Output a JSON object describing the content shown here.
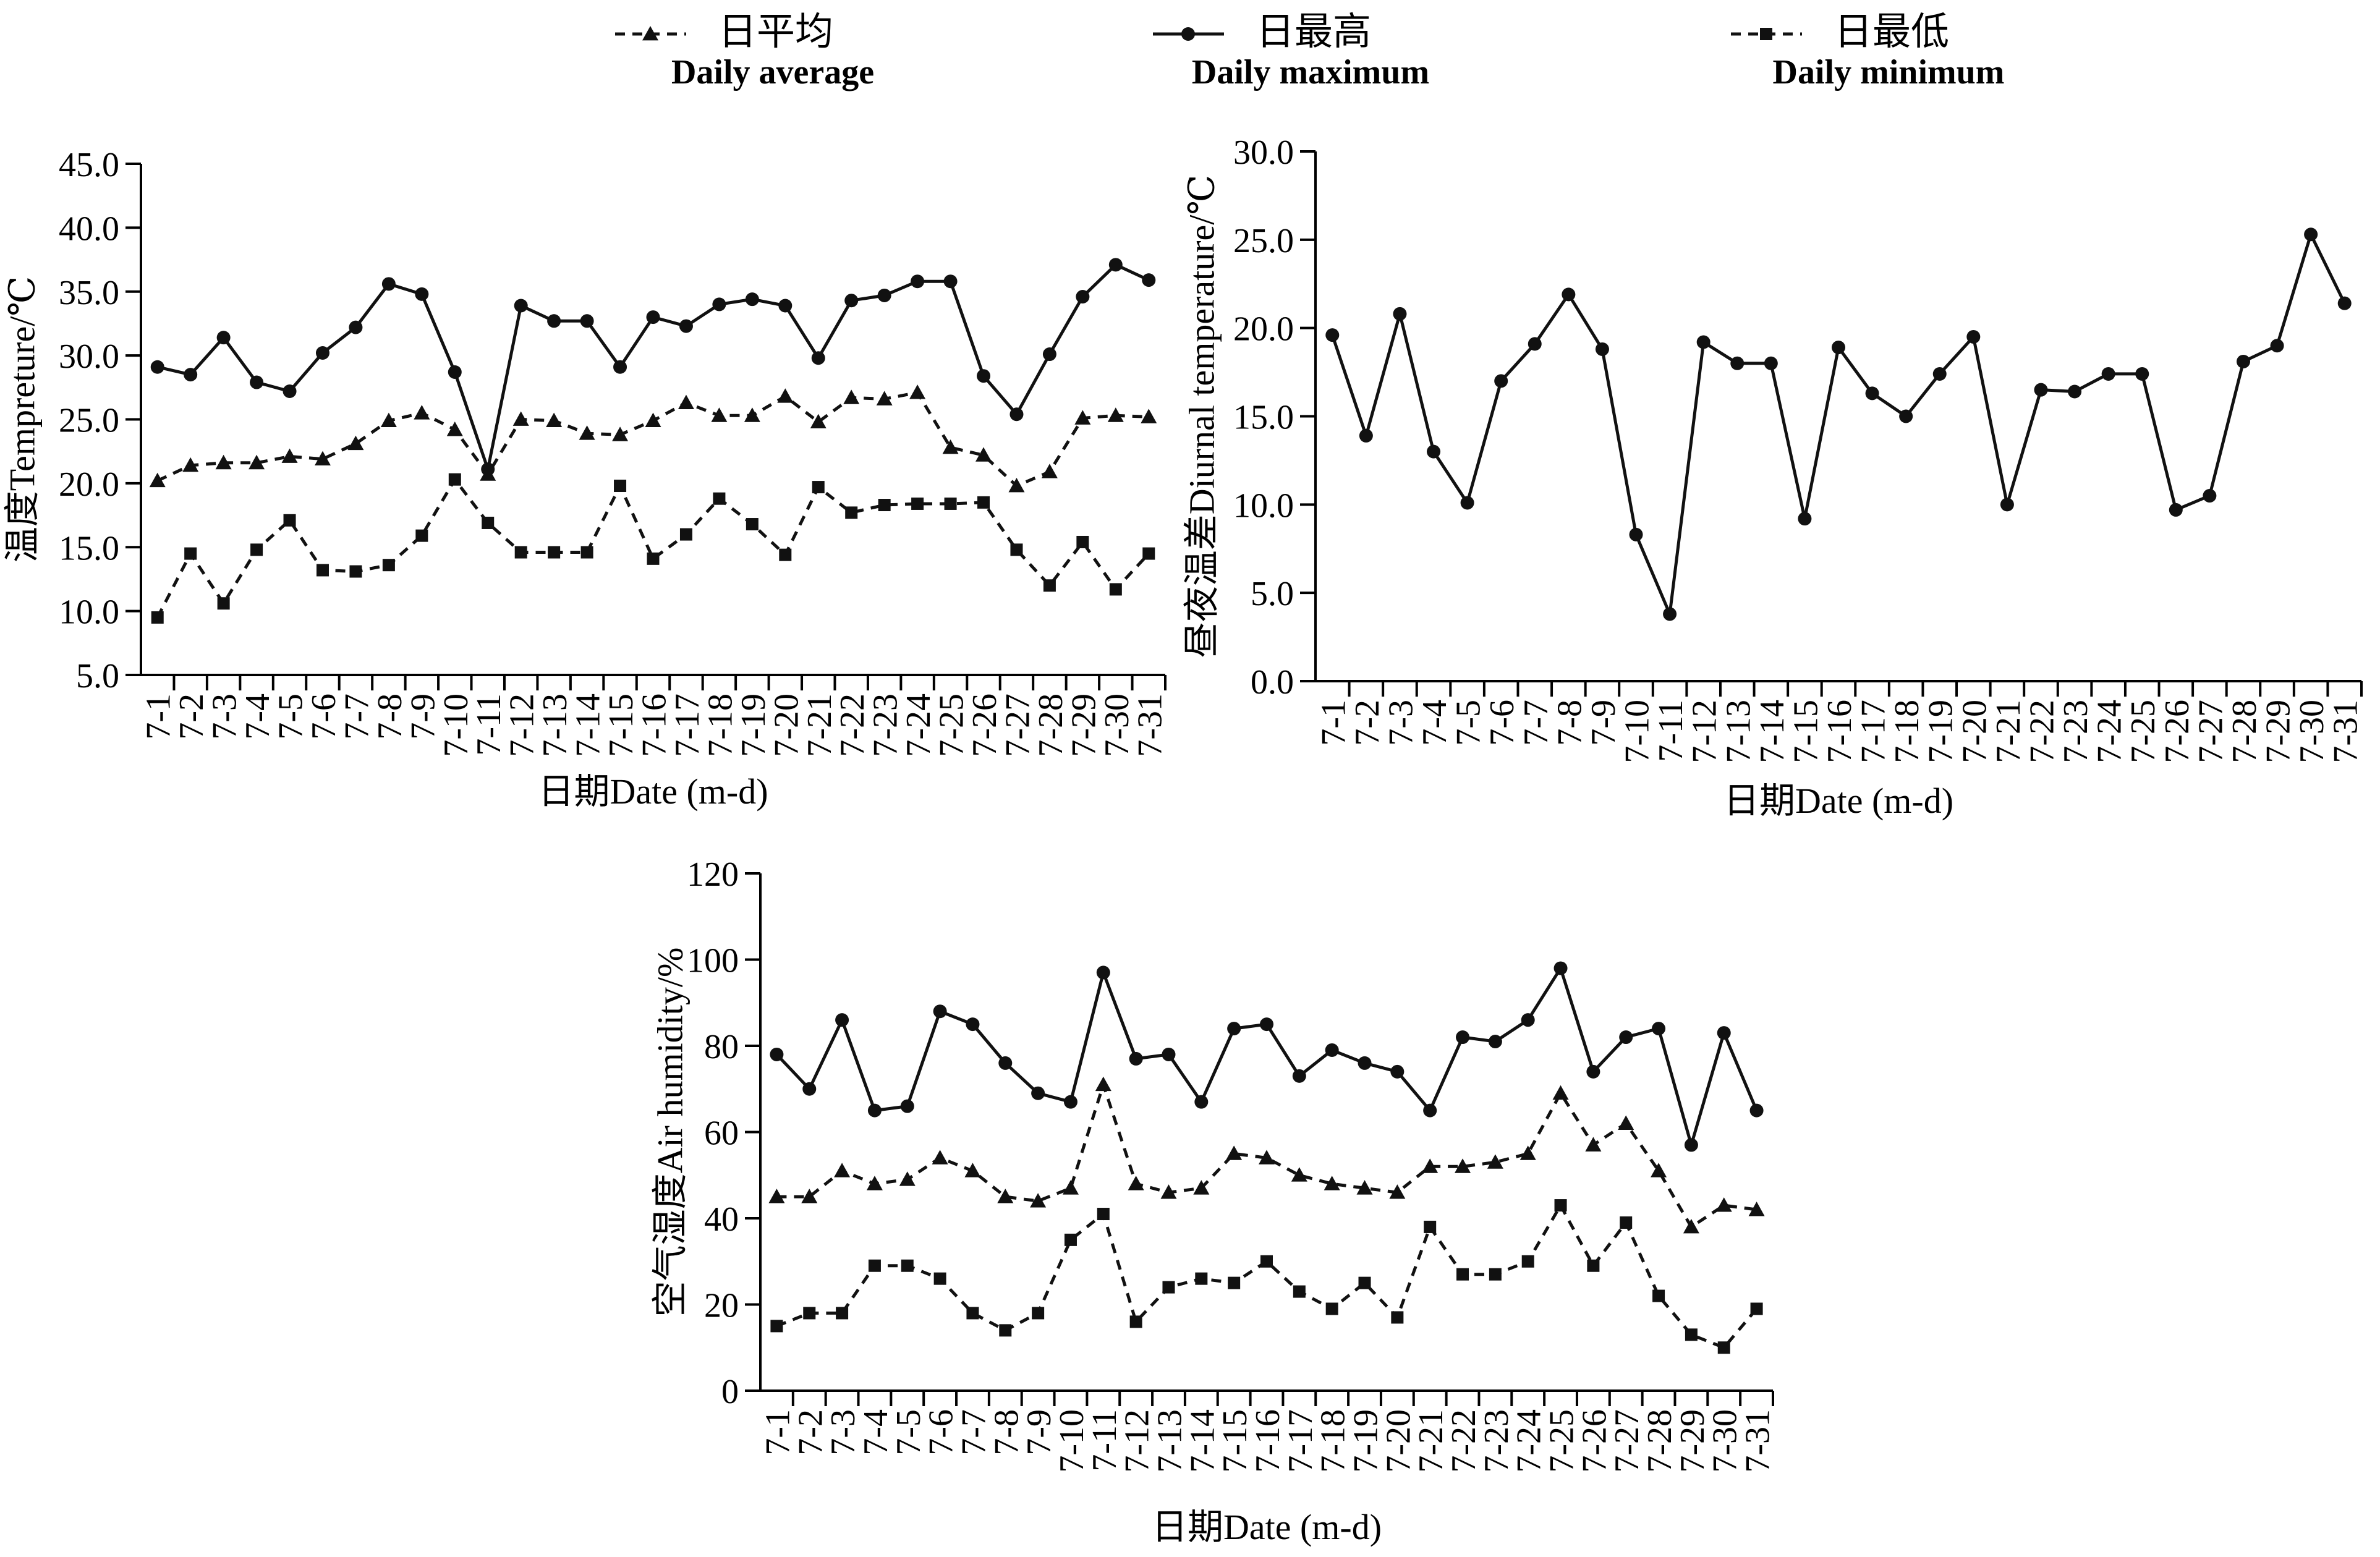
{
  "legend": [
    {
      "key": "avg",
      "label_cn": "日平均",
      "label_en": "Daily average",
      "marker": "triangle-icon",
      "dash": "dashed"
    },
    {
      "key": "max",
      "label_cn": "日最高",
      "label_en": "Daily maximum",
      "marker": "circle-icon",
      "dash": "solid"
    },
    {
      "key": "min",
      "label_cn": "日最低",
      "label_en": "Daily minimum",
      "marker": "square-icon",
      "dash": "dashed"
    }
  ],
  "chart_data": [
    {
      "type": "line",
      "id": "temperature",
      "title": "",
      "xlabel": "日期Date (m-d)",
      "ylabel": "温度Tempreture/℃",
      "ylim": [
        5.0,
        45.0
      ],
      "yticks": [
        "45.0",
        "40.0",
        "35.0",
        "30.0",
        "25.0",
        "20.0",
        "15.0",
        "10.0",
        "5.0"
      ],
      "categories": [
        "7-1",
        "7-2",
        "7-3",
        "7-4",
        "7-5",
        "7-6",
        "7-7",
        "7-8",
        "7-9",
        "7-10",
        "7-11",
        "7-12",
        "7-13",
        "7-14",
        "7-15",
        "7-16",
        "7-17",
        "7-18",
        "7-19",
        "7-20",
        "7-21",
        "7-22",
        "7-23",
        "7-24",
        "7-25",
        "7-26",
        "7-27",
        "7-28",
        "7-29",
        "7-30",
        "7-31"
      ],
      "series": [
        {
          "key": "max",
          "values": [
            29.1,
            28.5,
            31.4,
            27.9,
            27.2,
            30.2,
            32.2,
            35.6,
            34.8,
            28.7,
            21.1,
            33.9,
            32.7,
            32.7,
            29.1,
            33.0,
            32.3,
            34.0,
            34.4,
            33.9,
            29.8,
            34.3,
            34.7,
            35.8,
            35.8,
            28.4,
            25.4,
            30.1,
            34.6,
            37.1,
            35.9
          ]
        },
        {
          "key": "avg",
          "values": [
            20.2,
            21.4,
            21.6,
            21.6,
            22.1,
            21.9,
            23.1,
            24.9,
            25.5,
            24.2,
            20.7,
            25.0,
            24.9,
            23.9,
            23.8,
            24.9,
            26.3,
            25.3,
            25.3,
            26.8,
            24.8,
            26.7,
            26.6,
            27.1,
            22.8,
            22.2,
            19.8,
            20.9,
            25.1,
            25.3,
            25.2
          ]
        },
        {
          "key": "min",
          "values": [
            9.5,
            14.5,
            10.6,
            14.8,
            17.1,
            13.2,
            13.1,
            13.6,
            15.9,
            20.3,
            16.9,
            14.6,
            14.6,
            14.6,
            19.8,
            14.1,
            16.0,
            18.8,
            16.8,
            14.4,
            19.7,
            17.7,
            18.3,
            18.4,
            18.4,
            18.5,
            14.8,
            12.0,
            15.4,
            11.7,
            14.5
          ]
        }
      ]
    },
    {
      "type": "line",
      "id": "diurnal",
      "title": "",
      "xlabel": "日期Date (m-d)",
      "ylabel": "昼夜温差Diurnal temperature/℃",
      "ylim": [
        0.0,
        30.0
      ],
      "yticks": [
        "30.0",
        "25.0",
        "20.0",
        "15.0",
        "10.0",
        "5.0",
        "0.0"
      ],
      "categories": [
        "7-1",
        "7-2",
        "7-3",
        "7-4",
        "7-5",
        "7-6",
        "7-7",
        "7-8",
        "7-9",
        "7-10",
        "7-11",
        "7-12",
        "7-13",
        "7-14",
        "7-15",
        "7-16",
        "7-17",
        "7-18",
        "7-19",
        "7-20",
        "7-21",
        "7-22",
        "7-23",
        "7-24",
        "7-25",
        "7-26",
        "7-27",
        "7-28",
        "7-29",
        "7-30",
        "7-31"
      ],
      "series": [
        {
          "key": "max",
          "values": [
            19.6,
            13.9,
            20.8,
            13.0,
            10.1,
            17.0,
            19.1,
            21.9,
            18.8,
            8.3,
            3.8,
            19.2,
            18.0,
            18.0,
            9.2,
            18.9,
            16.3,
            15.0,
            17.4,
            19.5,
            10.0,
            16.5,
            16.4,
            17.4,
            17.4,
            9.7,
            10.5,
            18.1,
            19.0,
            25.3,
            21.4
          ]
        }
      ]
    },
    {
      "type": "line",
      "id": "humidity",
      "title": "",
      "xlabel": "日期Date (m-d)",
      "ylabel": "空气湿度Air humidity/%",
      "ylim": [
        0,
        120
      ],
      "yticks": [
        "120",
        "100",
        "80",
        "60",
        "40",
        "20",
        "0"
      ],
      "categories": [
        "7-1",
        "7-2",
        "7-3",
        "7-4",
        "7-5",
        "7-6",
        "7-7",
        "7-8",
        "7-9",
        "7-10",
        "7-11",
        "7-12",
        "7-13",
        "7-14",
        "7-15",
        "7-16",
        "7-17",
        "7-18",
        "7-19",
        "7-20",
        "7-21",
        "7-22",
        "7-23",
        "7-24",
        "7-25",
        "7-26",
        "7-27",
        "7-28",
        "7-29",
        "7-30",
        "7-31"
      ],
      "series": [
        {
          "key": "max",
          "values": [
            78,
            70,
            86,
            65,
            66,
            88,
            85,
            76,
            69,
            67,
            97,
            77,
            78,
            67,
            84,
            85,
            73,
            79,
            76,
            74,
            65,
            82,
            81,
            86,
            98,
            74,
            82,
            84,
            57,
            83,
            65
          ]
        },
        {
          "key": "avg",
          "values": [
            45,
            45,
            51,
            48,
            49,
            54,
            51,
            45,
            44,
            47,
            71,
            48,
            46,
            47,
            55,
            54,
            50,
            48,
            47,
            46,
            52,
            52,
            53,
            55,
            69,
            57,
            62,
            51,
            38,
            43,
            42
          ]
        },
        {
          "key": "min",
          "values": [
            15,
            18,
            18,
            29,
            29,
            26,
            18,
            14,
            18,
            35,
            41,
            16,
            24,
            26,
            25,
            30,
            23,
            19,
            25,
            17,
            38,
            27,
            27,
            30,
            43,
            29,
            39,
            22,
            13,
            10,
            19
          ]
        }
      ]
    }
  ]
}
